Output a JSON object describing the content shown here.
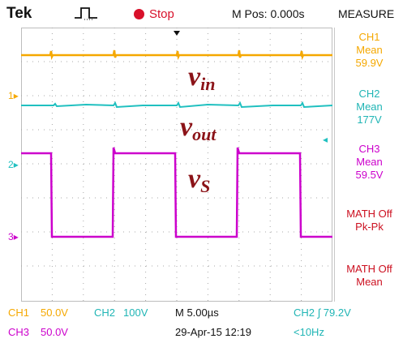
{
  "header": {
    "brand": "Tek",
    "trigger_icon": "trigger-pulse-icon",
    "run_state": "Stop",
    "mpos": "M Pos: 0.000s",
    "measure_title": "MEASURE"
  },
  "colors": {
    "ch1": "#f5a800",
    "ch2": "#20c0c0",
    "ch3": "#cc00cc",
    "math": "#cc1020",
    "label": "#8b1318",
    "grid": "#a8a8a8"
  },
  "channel_markers": {
    "ch1": "1",
    "ch2": "2",
    "ch3": "3"
  },
  "labels": {
    "vin_main": "v",
    "vin_sub": "in",
    "vout_main": "v",
    "vout_sub": "out",
    "vs_main": "v",
    "vs_sub": "S"
  },
  "measurements": [
    {
      "source": "CH1",
      "type": "Mean",
      "value": "59.9V"
    },
    {
      "source": "CH2",
      "type": "Mean",
      "value": "177V"
    },
    {
      "source": "CH3",
      "type": "Mean",
      "value": "59.5V"
    },
    {
      "source": "MATH Off",
      "type": "Pk-Pk",
      "value": ""
    },
    {
      "source": "MATH Off",
      "type": "Mean",
      "value": ""
    }
  ],
  "footer": {
    "ch1_label": "CH1",
    "ch1_scale": "50.0V",
    "ch2_label": "CH2",
    "ch2_scale": "100V",
    "timebase": "M 5.00µs",
    "trigger": "CH2 ∫ 79.2V",
    "ch3_label": "CH3",
    "ch3_scale": "50.0V",
    "date": "29-Apr-15 12:19",
    "freq": "<10Hz"
  }
}
